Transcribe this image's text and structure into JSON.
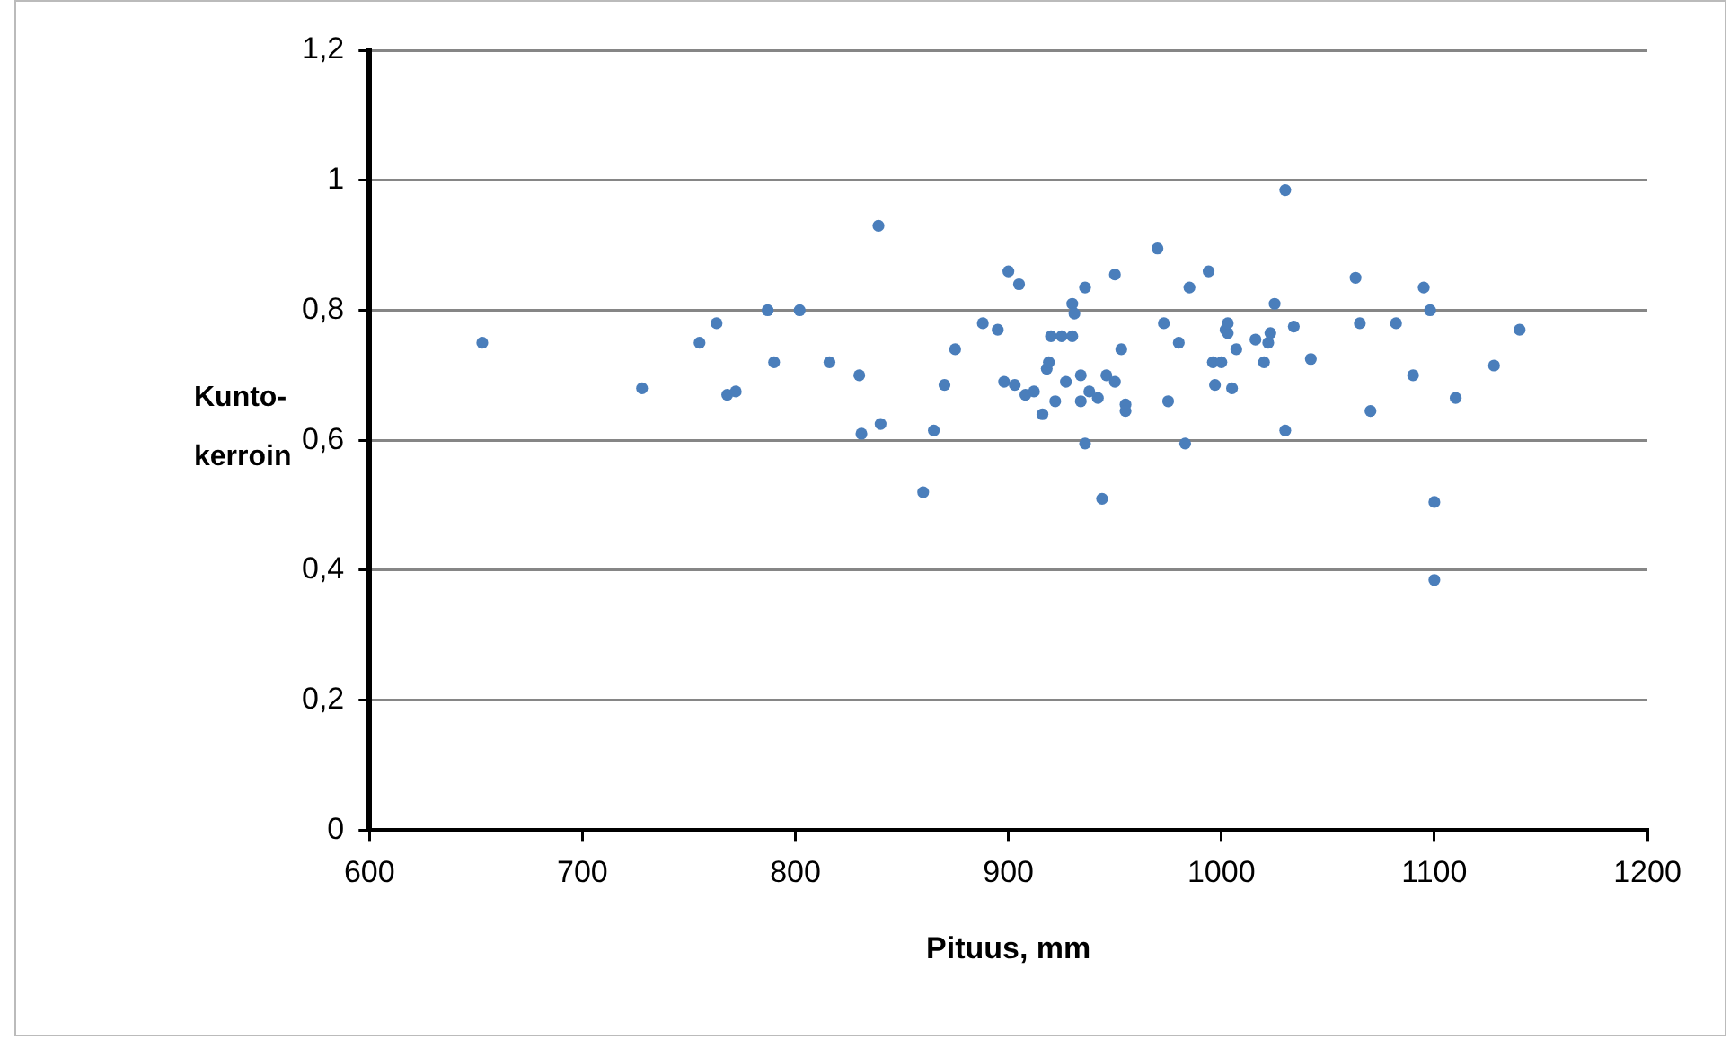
{
  "chart_data": {
    "type": "scatter",
    "xlabel": "Pituus, mm",
    "ylabel": "Kunto-kerroin",
    "xlim": [
      600,
      1200
    ],
    "xticks": [
      600,
      700,
      800,
      900,
      1000,
      1100,
      1200
    ],
    "ylim": [
      0,
      1.2
    ],
    "yticks": [
      {
        "value": 0,
        "label": "0"
      },
      {
        "value": 0.2,
        "label": "0,2"
      },
      {
        "value": 0.4,
        "label": "0,4"
      },
      {
        "value": 0.6,
        "label": "0,6"
      },
      {
        "value": 0.8,
        "label": "0,8"
      },
      {
        "value": 1,
        "label": "1"
      },
      {
        "value": 1.2,
        "label": "1,2"
      }
    ],
    "grid": "y",
    "legend": false,
    "marker": "circle",
    "series": [
      {
        "color": "#4a7ebb",
        "x": [
          653,
          728,
          755,
          763,
          768,
          772,
          787,
          790,
          802,
          816,
          830,
          831,
          839,
          840,
          860,
          865,
          870,
          875,
          888,
          895,
          898,
          900,
          903,
          905,
          908,
          912,
          916,
          918,
          919,
          920,
          922,
          925,
          927,
          930,
          930,
          931,
          934,
          934,
          936,
          936,
          938,
          942,
          944,
          946,
          950,
          950,
          953,
          955,
          955,
          970,
          973,
          975,
          980,
          983,
          985,
          994,
          996,
          997,
          1000,
          1002,
          1003,
          1003,
          1005,
          1007,
          1016,
          1020,
          1022,
          1023,
          1025,
          1030,
          1030,
          1034,
          1042,
          1063,
          1065,
          1070,
          1082,
          1090,
          1095,
          1098,
          1100,
          1100,
          1110,
          1128,
          1140
        ],
        "values": [
          0.75,
          0.68,
          0.75,
          0.78,
          0.67,
          0.675,
          0.8,
          0.72,
          0.8,
          0.72,
          0.7,
          0.61,
          0.93,
          0.625,
          0.52,
          0.615,
          0.685,
          0.74,
          0.78,
          0.77,
          0.69,
          0.86,
          0.685,
          0.84,
          0.67,
          0.675,
          0.64,
          0.71,
          0.72,
          0.76,
          0.66,
          0.76,
          0.69,
          0.76,
          0.81,
          0.795,
          0.66,
          0.7,
          0.835,
          0.595,
          0.675,
          0.665,
          0.51,
          0.7,
          0.855,
          0.69,
          0.74,
          0.655,
          0.645,
          0.895,
          0.78,
          0.66,
          0.75,
          0.595,
          0.835,
          0.86,
          0.72,
          0.685,
          0.72,
          0.77,
          0.765,
          0.78,
          0.68,
          0.74,
          0.755,
          0.72,
          0.75,
          0.765,
          0.81,
          0.985,
          0.615,
          0.775,
          0.725,
          0.85,
          0.78,
          0.645,
          0.78,
          0.7,
          0.835,
          0.8,
          0.505,
          0.385,
          0.665,
          0.715,
          0.77
        ]
      }
    ]
  }
}
